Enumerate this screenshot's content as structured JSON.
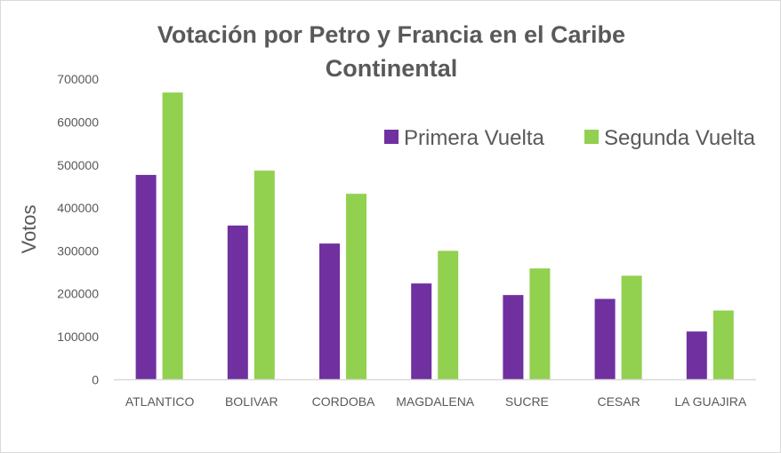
{
  "chart_data": {
    "type": "bar",
    "title": "Votación por Petro y Francia en el Caribe Continental",
    "title_lines": [
      "Votación por Petro y Francia en el Caribe",
      "Continental"
    ],
    "xlabel": "",
    "ylabel": "Votos",
    "ylim": [
      0,
      700000
    ],
    "yticks": [
      "0",
      "100000",
      "200000",
      "300000",
      "400000",
      "500000",
      "600000",
      "700000"
    ],
    "categories": [
      "ATLANTICO",
      "BOLIVAR",
      "CORDOBA",
      "MAGDALENA",
      "SUCRE",
      "CESAR",
      "LA GUAJIRA"
    ],
    "series": [
      {
        "name": "Primera Vuelta",
        "color": "#7030A0",
        "values": [
          477000,
          359000,
          317000,
          224000,
          197000,
          188000,
          112000
        ]
      },
      {
        "name": "Segunda Vuelta",
        "color": "#92D050",
        "values": [
          669000,
          487000,
          433000,
          300000,
          259000,
          242000,
          161000
        ]
      }
    ],
    "grid": false,
    "legend": "top-right"
  }
}
